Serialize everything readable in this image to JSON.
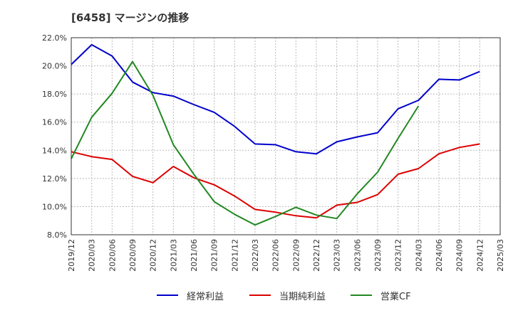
{
  "chart_data": {
    "type": "line",
    "title": "[6458]  マージンの推移",
    "x": [
      "2019/12",
      "2020/03",
      "2020/06",
      "2020/09",
      "2020/12",
      "2021/03",
      "2021/06",
      "2021/09",
      "2021/12",
      "2022/03",
      "2022/06",
      "2022/09",
      "2022/12",
      "2023/03",
      "2023/06",
      "2023/09",
      "2023/12",
      "2024/03",
      "2024/06",
      "2024/09",
      "2024/12",
      "2025/03"
    ],
    "y_ticks": [
      "22.0%",
      "20.0%",
      "18.0%",
      "16.0%",
      "14.0%",
      "12.0%",
      "10.0%",
      "8.0%"
    ],
    "ylim": [
      8.0,
      22.0
    ],
    "y_unit": "%",
    "grid": true,
    "legend_position": "bottom",
    "series": [
      {
        "name": "経常利益",
        "color": "#0000cc",
        "values": [
          20.1,
          21.5,
          20.7,
          18.85,
          18.1,
          17.85,
          17.25,
          16.7,
          15.7,
          14.45,
          14.4,
          13.9,
          13.75,
          14.6,
          14.95,
          15.25,
          16.95,
          17.55,
          19.05,
          19.0,
          19.6,
          null
        ]
      },
      {
        "name": "当期純利益",
        "color": "#dd0000",
        "values": [
          13.9,
          13.55,
          13.35,
          12.15,
          11.7,
          12.85,
          12.05,
          11.55,
          10.75,
          9.8,
          9.6,
          9.35,
          9.2,
          10.1,
          10.3,
          10.85,
          12.3,
          12.7,
          13.75,
          14.2,
          14.45,
          null
        ]
      },
      {
        "name": "営業CF",
        "color": "#228822",
        "values": [
          13.4,
          16.35,
          18.05,
          20.3,
          17.9,
          14.4,
          12.3,
          10.35,
          9.45,
          8.7,
          9.3,
          9.95,
          9.4,
          9.15,
          10.9,
          12.45,
          14.85,
          17.15,
          null,
          null,
          null,
          null
        ]
      }
    ]
  }
}
